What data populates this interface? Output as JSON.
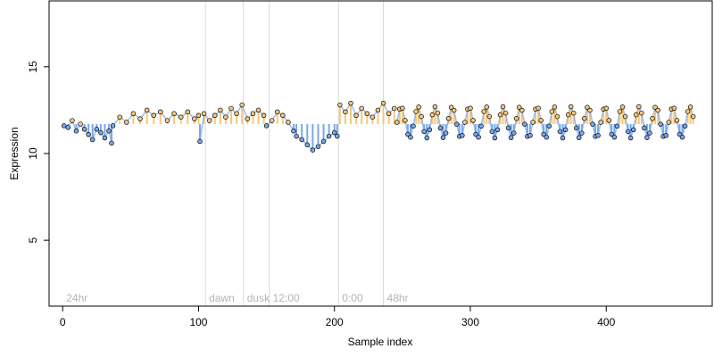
{
  "chart_data": {
    "type": "scatter",
    "title": "",
    "xlabel": "Sample index",
    "ylabel": "Expression",
    "xlim": [
      -10,
      478
    ],
    "ylim": [
      1.2,
      18.8
    ],
    "x_ticks": [
      "0",
      "100",
      "200",
      "300",
      "400"
    ],
    "y_ticks": [
      "5",
      "10",
      "15"
    ],
    "grid": false,
    "baseline": 11.7,
    "colors": {
      "above": "#f5c77e",
      "below": "#7ba7e8",
      "marker_edge": "#000000",
      "annotation_line": "#d9d9d9",
      "annotation_text": "#b3b3b3"
    },
    "annotations": [
      {
        "label": "24hr",
        "x": 0
      },
      {
        "label": "dawn",
        "x": 105
      },
      {
        "label": "dusk",
        "x": 133
      },
      {
        "label": "12:00",
        "x": 152
      },
      {
        "label": "0:00",
        "x": 203
      },
      {
        "label": "48hr",
        "x": 236
      }
    ],
    "segments": [
      {
        "x_start": 1,
        "x_end": 36,
        "points": [
          [
            1,
            11.6
          ],
          [
            4,
            11.5
          ],
          [
            7,
            11.9
          ],
          [
            10,
            11.3
          ],
          [
            13,
            11.7
          ],
          [
            16,
            11.4
          ],
          [
            19,
            11.1
          ],
          [
            22,
            10.8
          ],
          [
            25,
            11.4
          ],
          [
            28,
            11.2
          ],
          [
            31,
            10.9
          ],
          [
            34,
            11.3
          ],
          [
            36,
            10.6
          ]
        ]
      },
      {
        "x_start": 37,
        "x_end": 100,
        "points": [
          [
            37,
            11.6
          ],
          [
            42,
            12.1
          ],
          [
            47,
            11.8
          ],
          [
            52,
            12.3
          ],
          [
            57,
            12.0
          ],
          [
            62,
            12.5
          ],
          [
            67,
            12.2
          ],
          [
            72,
            12.4
          ],
          [
            77,
            11.9
          ],
          [
            82,
            12.3
          ],
          [
            87,
            12.1
          ],
          [
            92,
            12.4
          ],
          [
            97,
            12.0
          ],
          [
            100,
            12.2
          ]
        ]
      },
      {
        "x_start": 101,
        "x_end": 148,
        "points": [
          [
            101,
            10.7
          ],
          [
            104,
            12.3
          ],
          [
            108,
            11.9
          ],
          [
            112,
            12.2
          ],
          [
            116,
            12.5
          ],
          [
            120,
            12.1
          ],
          [
            124,
            12.6
          ],
          [
            128,
            12.3
          ],
          [
            132,
            12.8
          ],
          [
            136,
            12.0
          ],
          [
            140,
            12.3
          ],
          [
            144,
            12.5
          ],
          [
            148,
            12.2
          ]
        ]
      },
      {
        "x_start": 150,
        "x_end": 170,
        "points": [
          [
            150,
            11.6
          ],
          [
            154,
            11.9
          ],
          [
            158,
            12.4
          ],
          [
            162,
            12.2
          ],
          [
            166,
            11.8
          ],
          [
            170,
            11.3
          ]
        ]
      },
      {
        "x_start": 172,
        "x_end": 202,
        "points": [
          [
            172,
            11.0
          ],
          [
            176,
            10.8
          ],
          [
            180,
            10.5
          ],
          [
            184,
            10.2
          ],
          [
            188,
            10.4
          ],
          [
            192,
            10.7
          ],
          [
            196,
            11.0
          ],
          [
            200,
            11.2
          ],
          [
            202,
            11.0
          ]
        ]
      },
      {
        "x_start": 204,
        "x_end": 245,
        "points": [
          [
            204,
            12.8
          ],
          [
            208,
            12.4
          ],
          [
            212,
            12.9
          ],
          [
            216,
            12.2
          ],
          [
            220,
            12.6
          ],
          [
            224,
            12.3
          ],
          [
            228,
            12.1
          ],
          [
            232,
            12.5
          ],
          [
            236,
            12.9
          ],
          [
            240,
            12.3
          ],
          [
            244,
            12.6
          ]
        ]
      },
      {
        "x_start": 246,
        "x_end": 465,
        "wave": {
          "mean": 11.8,
          "amplitude": 0.9,
          "period": 12.5,
          "step": 2
        }
      }
    ]
  }
}
